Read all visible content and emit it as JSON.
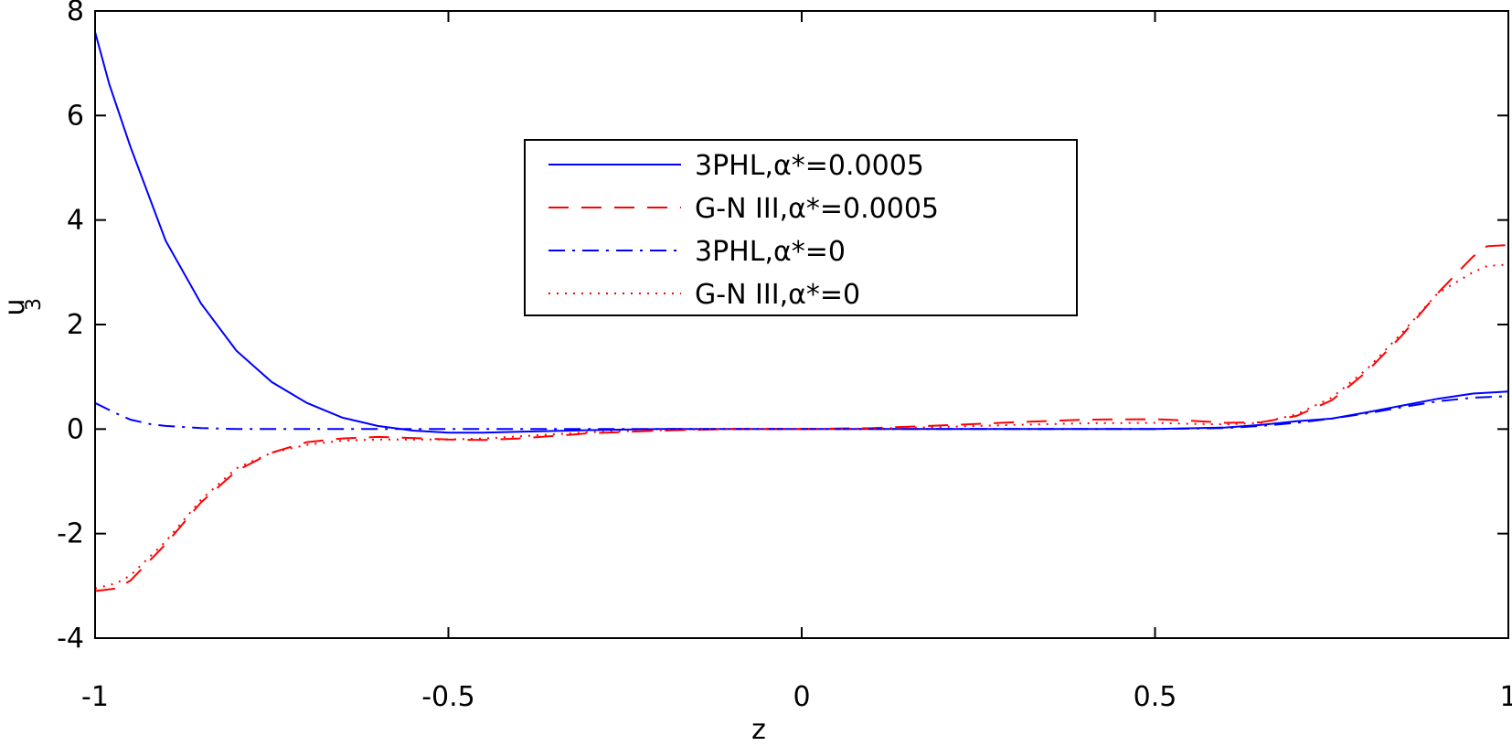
{
  "chart_data": {
    "type": "line",
    "title": "",
    "xlabel": "z",
    "ylabel": "u",
    "ylabel_subscript": "3",
    "xlim": [
      -1,
      1
    ],
    "ylim": [
      -4,
      8
    ],
    "x_ticks": [
      -1,
      -0.5,
      0,
      0.5,
      1
    ],
    "x_tick_labels": [
      "-1",
      "-0.5",
      "0",
      "0.5",
      "1"
    ],
    "y_ticks": [
      -4,
      -2,
      0,
      2,
      4,
      6,
      8
    ],
    "y_tick_labels": [
      "-4",
      "-2",
      "0",
      "2",
      "4",
      "6",
      "8"
    ],
    "grid": false,
    "legend_position": "upper-center",
    "series": [
      {
        "name": "3PHL,α*=0.0005",
        "color": "#0000ff",
        "style": "solid",
        "x": [
          -1,
          -0.98,
          -0.95,
          -0.9,
          -0.85,
          -0.8,
          -0.75,
          -0.7,
          -0.65,
          -0.6,
          -0.55,
          -0.5,
          -0.45,
          -0.4,
          -0.3,
          -0.2,
          -0.1,
          0,
          0.1,
          0.2,
          0.3,
          0.4,
          0.5,
          0.6,
          0.65,
          0.7,
          0.75,
          0.8,
          0.85,
          0.9,
          0.95,
          1
        ],
        "values": [
          7.6,
          6.6,
          5.4,
          3.6,
          2.4,
          1.5,
          0.9,
          0.5,
          0.22,
          0.06,
          -0.03,
          -0.07,
          -0.07,
          -0.05,
          -0.02,
          0,
          0,
          0,
          0,
          0,
          0,
          0,
          0,
          0.03,
          0.08,
          0.15,
          0.2,
          0.32,
          0.45,
          0.58,
          0.68,
          0.72
        ]
      },
      {
        "name": "G-N III,α*=0.0005",
        "color": "#ff0000",
        "style": "dashed",
        "x": [
          -1,
          -0.97,
          -0.95,
          -0.9,
          -0.85,
          -0.8,
          -0.75,
          -0.7,
          -0.65,
          -0.6,
          -0.55,
          -0.5,
          -0.45,
          -0.4,
          -0.35,
          -0.3,
          -0.2,
          -0.1,
          0,
          0.1,
          0.2,
          0.3,
          0.4,
          0.5,
          0.55,
          0.6,
          0.65,
          0.7,
          0.75,
          0.8,
          0.85,
          0.9,
          0.95,
          0.97,
          1
        ],
        "values": [
          -3.1,
          -3.05,
          -2.9,
          -2.2,
          -1.4,
          -0.8,
          -0.45,
          -0.25,
          -0.18,
          -0.15,
          -0.17,
          -0.2,
          -0.21,
          -0.18,
          -0.13,
          -0.08,
          -0.03,
          0,
          0,
          0.02,
          0.07,
          0.13,
          0.18,
          0.19,
          0.16,
          0.12,
          0.13,
          0.25,
          0.55,
          1.1,
          1.8,
          2.6,
          3.3,
          3.5,
          3.52
        ]
      },
      {
        "name": "3PHL,α*=0",
        "color": "#0000ff",
        "style": "dashdot",
        "x": [
          -1,
          -0.97,
          -0.95,
          -0.92,
          -0.9,
          -0.85,
          -0.8,
          -0.7,
          -0.6,
          -0.5,
          -0.4,
          -0.3,
          -0.2,
          -0.1,
          0,
          0.1,
          0.2,
          0.3,
          0.4,
          0.5,
          0.55,
          0.6,
          0.65,
          0.7,
          0.75,
          0.8,
          0.85,
          0.9,
          0.95,
          1
        ],
        "values": [
          0.5,
          0.3,
          0.18,
          0.09,
          0.06,
          0.02,
          0,
          0,
          0,
          0,
          0,
          0,
          0,
          0,
          0,
          0,
          0,
          0,
          0,
          0,
          0.01,
          0.02,
          0.06,
          0.12,
          0.2,
          0.3,
          0.42,
          0.53,
          0.6,
          0.63
        ]
      },
      {
        "name": "G-N III,α*=0",
        "color": "#ff0000",
        "style": "dotted",
        "x": [
          -1,
          -0.97,
          -0.95,
          -0.9,
          -0.85,
          -0.8,
          -0.75,
          -0.7,
          -0.65,
          -0.6,
          -0.55,
          -0.5,
          -0.45,
          -0.4,
          -0.35,
          -0.3,
          -0.2,
          -0.1,
          0,
          0.1,
          0.2,
          0.3,
          0.4,
          0.5,
          0.55,
          0.6,
          0.65,
          0.7,
          0.75,
          0.8,
          0.85,
          0.9,
          0.95,
          0.97,
          1
        ],
        "values": [
          -3.05,
          -2.95,
          -2.8,
          -2.15,
          -1.35,
          -0.75,
          -0.45,
          -0.3,
          -0.22,
          -0.2,
          -0.2,
          -0.2,
          -0.18,
          -0.14,
          -0.1,
          -0.06,
          -0.02,
          0,
          0,
          0.01,
          0.04,
          0.08,
          0.11,
          0.12,
          0.1,
          0.09,
          0.12,
          0.28,
          0.6,
          1.15,
          1.85,
          2.6,
          3.0,
          3.12,
          3.15
        ]
      }
    ]
  }
}
